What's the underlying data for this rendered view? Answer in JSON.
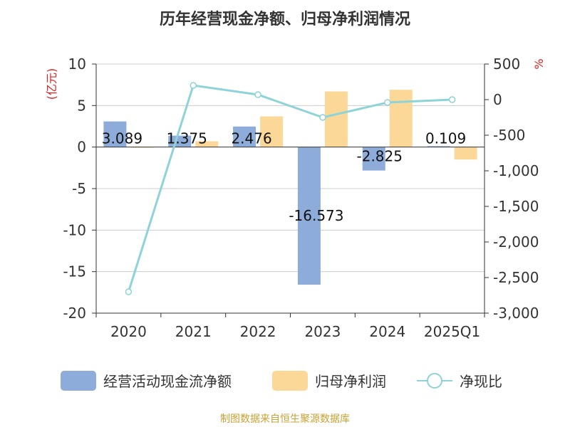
{
  "chart_data": {
    "type": "bar",
    "title": "历年经营现金净额、归母净利润情况",
    "categories": [
      "2020",
      "2021",
      "2022",
      "2023",
      "2024",
      "2025Q1"
    ],
    "y_left": {
      "label": "(亿元)",
      "min": -20,
      "max": 10,
      "ticks": [
        10,
        5,
        0,
        -5,
        -10,
        -15,
        -20
      ]
    },
    "y_right": {
      "label": "%",
      "min": -3000,
      "max": 500,
      "ticks": [
        500,
        0,
        -500,
        -1000,
        -1500,
        -2000,
        -2500,
        -3000
      ],
      "tick_labels": [
        "500",
        "0",
        "-500",
        "-1,000",
        "-1,500",
        "-2,000",
        "-2,500",
        "-3,000"
      ]
    },
    "series": [
      {
        "name": "经营活动现金流净额",
        "type": "bar",
        "axis": "left",
        "color": "#8eacd9",
        "values": [
          3.089,
          1.375,
          2.476,
          -16.573,
          -2.825,
          0.109
        ],
        "data_labels": [
          "3.089",
          "1.375",
          "2.476",
          "-16.573",
          "-2.825",
          "0.109"
        ]
      },
      {
        "name": "归母净利润",
        "type": "bar",
        "axis": "left",
        "color": "#fcd898",
        "values": [
          -0.05,
          0.7,
          3.7,
          6.7,
          6.9,
          -1.5
        ]
      },
      {
        "name": "净现比",
        "type": "line",
        "axis": "right",
        "color": "#8dd3d8",
        "values": [
          -2700,
          200,
          70,
          -250,
          -40,
          0
        ]
      }
    ],
    "grid": true,
    "legend_position": "bottom",
    "source": "制图数据来自恒生聚源数据库"
  }
}
